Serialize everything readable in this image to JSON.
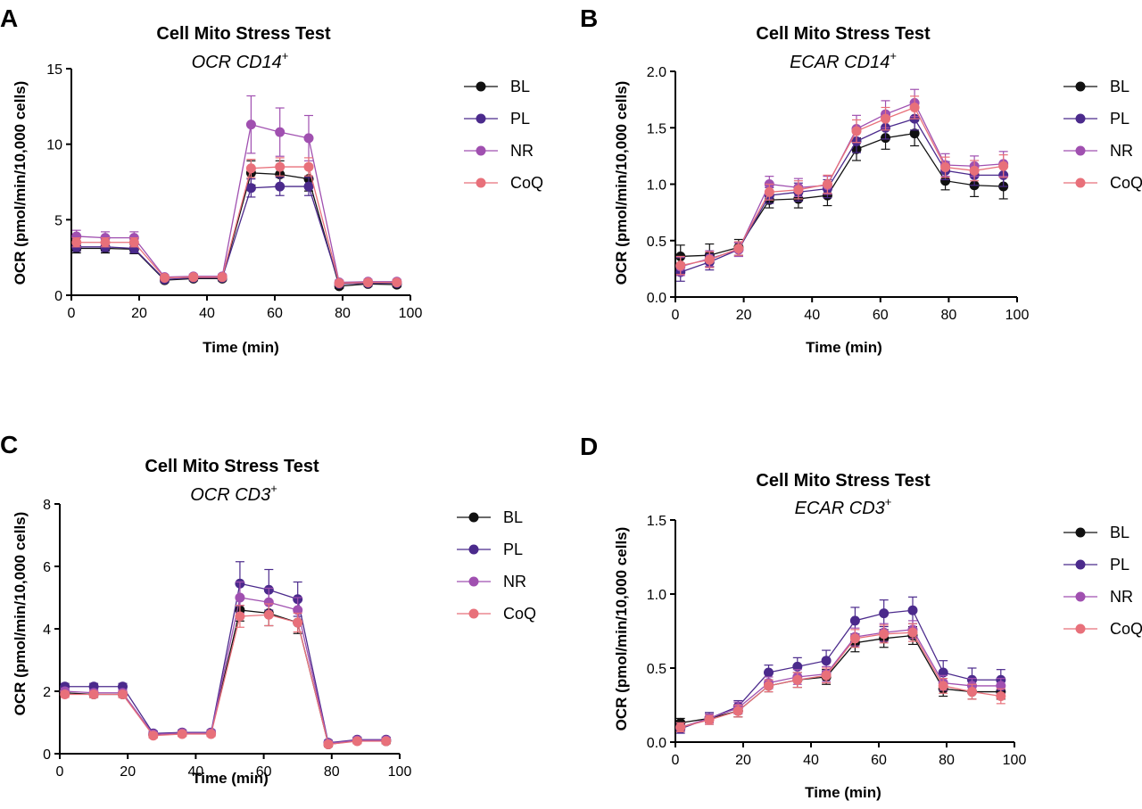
{
  "chart_data": [
    {
      "panel_label": "A",
      "type": "line",
      "title": "Cell Mito Stress Test",
      "subtitle_main": "OCR CD14",
      "subtitle_sup": "+",
      "xlabel": "Time (min)",
      "ylabel": "OCR (pmol/min/10,000 cells)",
      "xlim": [
        0,
        100
      ],
      "ylim": [
        0,
        15
      ],
      "xticks": [
        0,
        20,
        40,
        60,
        80,
        100
      ],
      "yticks": [
        0,
        5,
        10,
        15
      ],
      "legend_position": "right",
      "x": [
        1.5,
        10,
        18.5,
        27.5,
        36,
        44.5,
        53,
        61.5,
        70,
        79,
        87.5,
        96
      ],
      "series": [
        {
          "name": "BL",
          "color": "#111111",
          "values": [
            3.1,
            3.1,
            3.05,
            1.0,
            1.1,
            1.1,
            8.1,
            8.0,
            7.7,
            0.6,
            0.75,
            0.7
          ],
          "errors": [
            0.3,
            0.3,
            0.3,
            0.15,
            0.15,
            0.15,
            0.8,
            0.9,
            0.8,
            0.15,
            0.15,
            0.15
          ]
        },
        {
          "name": "PL",
          "color": "#4b2a8c",
          "values": [
            3.2,
            3.2,
            3.1,
            1.05,
            1.15,
            1.15,
            7.1,
            7.2,
            7.2,
            0.75,
            0.8,
            0.8
          ],
          "errors": [
            0.3,
            0.3,
            0.3,
            0.15,
            0.15,
            0.15,
            0.6,
            0.6,
            0.6,
            0.15,
            0.15,
            0.15
          ]
        },
        {
          "name": "NR",
          "color": "#a050b0",
          "values": [
            3.9,
            3.8,
            3.8,
            1.2,
            1.25,
            1.25,
            11.3,
            10.8,
            10.4,
            0.85,
            0.9,
            0.9
          ],
          "errors": [
            0.4,
            0.4,
            0.4,
            0.15,
            0.15,
            0.15,
            1.9,
            1.6,
            1.5,
            0.15,
            0.15,
            0.15
          ]
        },
        {
          "name": "CoQ",
          "color": "#e8707a",
          "values": [
            3.5,
            3.5,
            3.5,
            1.15,
            1.2,
            1.2,
            8.4,
            8.5,
            8.5,
            0.8,
            0.85,
            0.85
          ],
          "errors": [
            0.3,
            0.3,
            0.3,
            0.15,
            0.15,
            0.15,
            0.6,
            0.6,
            0.6,
            0.15,
            0.15,
            0.15
          ]
        }
      ]
    },
    {
      "panel_label": "B",
      "type": "line",
      "title": "Cell Mito Stress Test",
      "subtitle_main": "ECAR CD14",
      "subtitle_sup": "+",
      "xlabel": "Time (min)",
      "ylabel": "OCR (pmol/min/10,000 cells)",
      "xlim": [
        0,
        100
      ],
      "ylim": [
        0,
        2.0
      ],
      "xticks": [
        0,
        20,
        40,
        60,
        80,
        100
      ],
      "yticks": [
        0.0,
        0.5,
        1.0,
        1.5,
        2.0
      ],
      "legend_position": "right",
      "x": [
        1.5,
        10,
        18.5,
        27.5,
        36,
        44.5,
        53,
        61.5,
        70,
        79,
        87.5,
        96
      ],
      "series": [
        {
          "name": "BL",
          "color": "#111111",
          "values": [
            0.36,
            0.37,
            0.44,
            0.86,
            0.87,
            0.9,
            1.31,
            1.41,
            1.45,
            1.03,
            0.99,
            0.98
          ],
          "errors": [
            0.1,
            0.1,
            0.07,
            0.07,
            0.08,
            0.09,
            0.1,
            0.1,
            0.11,
            0.08,
            0.1,
            0.11
          ]
        },
        {
          "name": "PL",
          "color": "#4b2a8c",
          "values": [
            0.22,
            0.31,
            0.42,
            0.9,
            0.93,
            0.96,
            1.38,
            1.5,
            1.58,
            1.12,
            1.08,
            1.08
          ],
          "errors": [
            0.08,
            0.07,
            0.06,
            0.07,
            0.08,
            0.08,
            0.1,
            0.1,
            0.1,
            0.08,
            0.09,
            0.1
          ]
        },
        {
          "name": "NR",
          "color": "#a050b0",
          "values": [
            0.27,
            0.34,
            0.42,
            1.0,
            0.97,
            0.99,
            1.49,
            1.62,
            1.72,
            1.17,
            1.16,
            1.18
          ],
          "errors": [
            0.08,
            0.07,
            0.06,
            0.07,
            0.08,
            0.08,
            0.12,
            0.12,
            0.12,
            0.1,
            0.09,
            0.11
          ]
        },
        {
          "name": "CoQ",
          "color": "#e8707a",
          "values": [
            0.28,
            0.33,
            0.43,
            0.93,
            0.95,
            1.0,
            1.47,
            1.58,
            1.68,
            1.15,
            1.12,
            1.16
          ],
          "errors": [
            0.08,
            0.07,
            0.06,
            0.07,
            0.08,
            0.08,
            0.1,
            0.1,
            0.1,
            0.09,
            0.09,
            0.1
          ]
        }
      ]
    },
    {
      "panel_label": "C",
      "type": "line",
      "title": "Cell Mito Stress Test",
      "subtitle_main": "OCR CD3",
      "subtitle_sup": "+",
      "xlabel": "Time (min)",
      "ylabel": "OCR (pmol/min/10,000 cells)",
      "xlim": [
        0,
        100
      ],
      "ylim": [
        0,
        8
      ],
      "xticks": [
        0,
        20,
        40,
        60,
        80,
        100
      ],
      "yticks": [
        0,
        2,
        4,
        6,
        8
      ],
      "legend_position": "right",
      "x": [
        1.5,
        10,
        18.5,
        27.5,
        36,
        44.5,
        53,
        61.5,
        70,
        79,
        87.5,
        96
      ],
      "series": [
        {
          "name": "BL",
          "color": "#111111",
          "values": [
            1.95,
            1.9,
            1.9,
            0.6,
            0.65,
            0.65,
            4.6,
            4.5,
            4.2,
            0.3,
            0.42,
            0.4
          ],
          "errors": [
            0.1,
            0.1,
            0.1,
            0.08,
            0.08,
            0.08,
            0.35,
            0.4,
            0.35,
            0.08,
            0.08,
            0.08
          ]
        },
        {
          "name": "PL",
          "color": "#4b2a8c",
          "values": [
            2.15,
            2.15,
            2.15,
            0.65,
            0.68,
            0.68,
            5.45,
            5.25,
            4.95,
            0.35,
            0.45,
            0.45
          ],
          "errors": [
            0.1,
            0.1,
            0.1,
            0.08,
            0.08,
            0.08,
            0.7,
            0.65,
            0.55,
            0.08,
            0.08,
            0.08
          ]
        },
        {
          "name": "NR",
          "color": "#a050b0",
          "values": [
            2.0,
            1.95,
            1.95,
            0.62,
            0.66,
            0.66,
            5.0,
            4.85,
            4.6,
            0.33,
            0.43,
            0.43
          ],
          "errors": [
            0.1,
            0.1,
            0.1,
            0.08,
            0.08,
            0.08,
            0.5,
            0.45,
            0.4,
            0.08,
            0.08,
            0.08
          ]
        },
        {
          "name": "CoQ",
          "color": "#e8707a",
          "values": [
            1.9,
            1.9,
            1.9,
            0.58,
            0.63,
            0.63,
            4.4,
            4.45,
            4.2,
            0.3,
            0.4,
            0.4
          ],
          "errors": [
            0.1,
            0.1,
            0.1,
            0.08,
            0.08,
            0.08,
            0.35,
            0.35,
            0.3,
            0.08,
            0.08,
            0.08
          ]
        }
      ]
    },
    {
      "panel_label": "D",
      "type": "line",
      "title": "Cell Mito Stress Test",
      "subtitle_main": "ECAR CD3",
      "subtitle_sup": "+",
      "xlabel": "Time (min)",
      "ylabel": "OCR (pmol/min/10,000 cells)",
      "xlim": [
        0,
        100
      ],
      "ylim": [
        0,
        1.5
      ],
      "xticks": [
        0,
        20,
        40,
        60,
        80,
        100
      ],
      "yticks": [
        0.0,
        0.5,
        1.0,
        1.5
      ],
      "legend_position": "right",
      "x": [
        1.5,
        10,
        18.5,
        27.5,
        36,
        44.5,
        53,
        61.5,
        70,
        79,
        87.5,
        96
      ],
      "series": [
        {
          "name": "BL",
          "color": "#111111",
          "values": [
            0.13,
            0.16,
            0.21,
            0.38,
            0.42,
            0.44,
            0.67,
            0.7,
            0.72,
            0.36,
            0.34,
            0.34
          ],
          "errors": [
            0.03,
            0.03,
            0.04,
            0.04,
            0.05,
            0.05,
            0.06,
            0.06,
            0.06,
            0.05,
            0.05,
            0.05
          ]
        },
        {
          "name": "PL",
          "color": "#4b2a8c",
          "values": [
            0.09,
            0.16,
            0.24,
            0.47,
            0.51,
            0.55,
            0.82,
            0.87,
            0.89,
            0.47,
            0.42,
            0.42
          ],
          "errors": [
            0.03,
            0.04,
            0.04,
            0.05,
            0.06,
            0.07,
            0.09,
            0.09,
            0.09,
            0.08,
            0.08,
            0.07
          ]
        },
        {
          "name": "NR",
          "color": "#a050b0",
          "values": [
            0.1,
            0.16,
            0.23,
            0.4,
            0.44,
            0.46,
            0.71,
            0.74,
            0.76,
            0.4,
            0.38,
            0.38
          ],
          "errors": [
            0.03,
            0.03,
            0.04,
            0.04,
            0.05,
            0.05,
            0.06,
            0.06,
            0.06,
            0.05,
            0.05,
            0.05
          ]
        },
        {
          "name": "CoQ",
          "color": "#e8707a",
          "values": [
            0.1,
            0.15,
            0.21,
            0.38,
            0.42,
            0.45,
            0.7,
            0.73,
            0.74,
            0.38,
            0.34,
            0.31
          ],
          "errors": [
            0.03,
            0.03,
            0.04,
            0.04,
            0.05,
            0.05,
            0.06,
            0.06,
            0.06,
            0.05,
            0.05,
            0.05
          ]
        }
      ]
    }
  ]
}
